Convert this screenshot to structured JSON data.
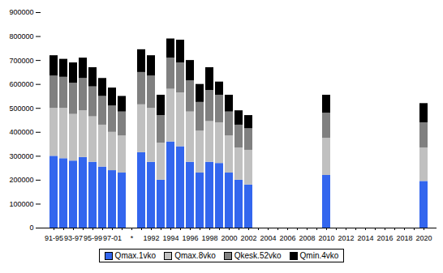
{
  "chart_data": {
    "type": "bar",
    "stacked": true,
    "grid": false,
    "legend": "bottom",
    "categories": [
      "91-95",
      null,
      "93-97",
      null,
      "95-99",
      null,
      "97-01",
      null,
      "*",
      null,
      "1992",
      null,
      "1994",
      null,
      "1996",
      null,
      "1998",
      null,
      "2000",
      null,
      "2002",
      null,
      "2004",
      null,
      "2006",
      null,
      "2008",
      null,
      "2010",
      null,
      "2012",
      null,
      "2014",
      null,
      "2016",
      null,
      "2018",
      null,
      "2020"
    ],
    "ylim": [
      0,
      900000
    ],
    "yticks": [
      0,
      100000,
      200000,
      300000,
      400000,
      500000,
      600000,
      700000,
      800000,
      900000
    ],
    "series": [
      {
        "name": "Qmax.1vko",
        "color": "#3366ee",
        "values": [
          300000,
          290000,
          280000,
          295000,
          275000,
          255000,
          240000,
          230000,
          null,
          315000,
          275000,
          200000,
          360000,
          340000,
          275000,
          230000,
          275000,
          270000,
          230000,
          200000,
          180000,
          null,
          null,
          null,
          null,
          null,
          null,
          null,
          220000,
          null,
          null,
          null,
          null,
          null,
          null,
          null,
          null,
          null,
          195000
        ]
      },
      {
        "name": "Qmax.8vko",
        "color": "#c0c0c0",
        "values": [
          200000,
          210000,
          195000,
          195000,
          190000,
          175000,
          160000,
          155000,
          null,
          200000,
          225000,
          155000,
          220000,
          225000,
          210000,
          175000,
          170000,
          170000,
          155000,
          135000,
          145000,
          null,
          null,
          null,
          null,
          null,
          null,
          null,
          155000,
          null,
          null,
          null,
          null,
          null,
          null,
          null,
          null,
          null,
          140000
        ]
      },
      {
        "name": "Qkesk.52vko",
        "color": "#808080",
        "values": [
          135000,
          130000,
          130000,
          135000,
          125000,
          120000,
          110000,
          100000,
          null,
          135000,
          135000,
          115000,
          130000,
          125000,
          130000,
          120000,
          130000,
          115000,
          100000,
          95000,
          90000,
          null,
          null,
          null,
          null,
          null,
          null,
          null,
          105000,
          null,
          null,
          null,
          null,
          null,
          null,
          null,
          null,
          null,
          105000
        ]
      },
      {
        "name": "Qmin.4vko",
        "color": "#000000",
        "values": [
          85000,
          75000,
          85000,
          85000,
          80000,
          75000,
          75000,
          65000,
          null,
          95000,
          85000,
          85000,
          80000,
          95000,
          85000,
          75000,
          95000,
          55000,
          70000,
          60000,
          55000,
          null,
          null,
          null,
          null,
          null,
          null,
          null,
          75000,
          null,
          null,
          null,
          null,
          null,
          null,
          null,
          null,
          null,
          80000
        ]
      }
    ]
  }
}
